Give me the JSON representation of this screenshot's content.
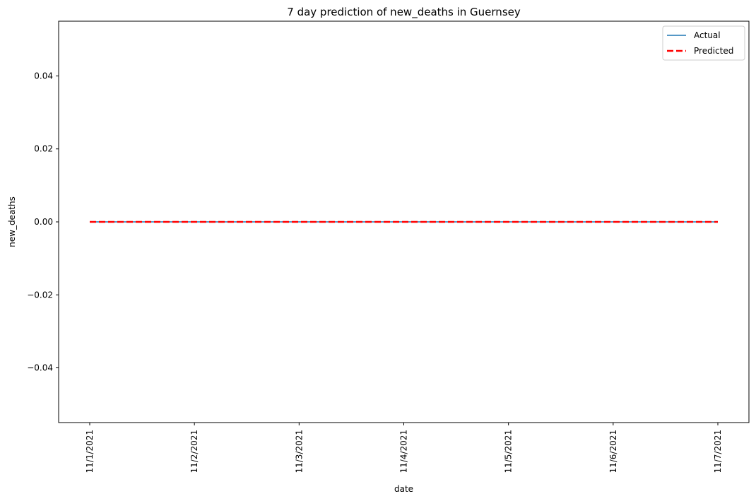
{
  "chart_data": {
    "type": "line",
    "title": "7 day prediction of new_deaths in Guernsey",
    "xlabel": "date",
    "ylabel": "new_deaths",
    "categories": [
      "11/1/2021",
      "11/2/2021",
      "11/3/2021",
      "11/4/2021",
      "11/5/2021",
      "11/6/2021",
      "11/7/2021"
    ],
    "ylim": [
      -0.055,
      0.055
    ],
    "yticks": [
      0.04,
      0.02,
      0.0,
      -0.02,
      -0.04
    ],
    "ytick_labels": [
      "0.04",
      "0.02",
      "0.00",
      "−0.02",
      "−0.04"
    ],
    "series": [
      {
        "name": "Actual",
        "values": [
          0,
          0,
          0,
          0,
          0,
          0,
          0
        ],
        "color": "#1f77b4",
        "style": "solid"
      },
      {
        "name": "Predicted",
        "values": [
          0,
          0,
          0,
          0,
          0,
          0,
          0
        ],
        "color": "#ff0000",
        "style": "dashed"
      }
    ],
    "legend_position": "top-right",
    "grid": false
  }
}
